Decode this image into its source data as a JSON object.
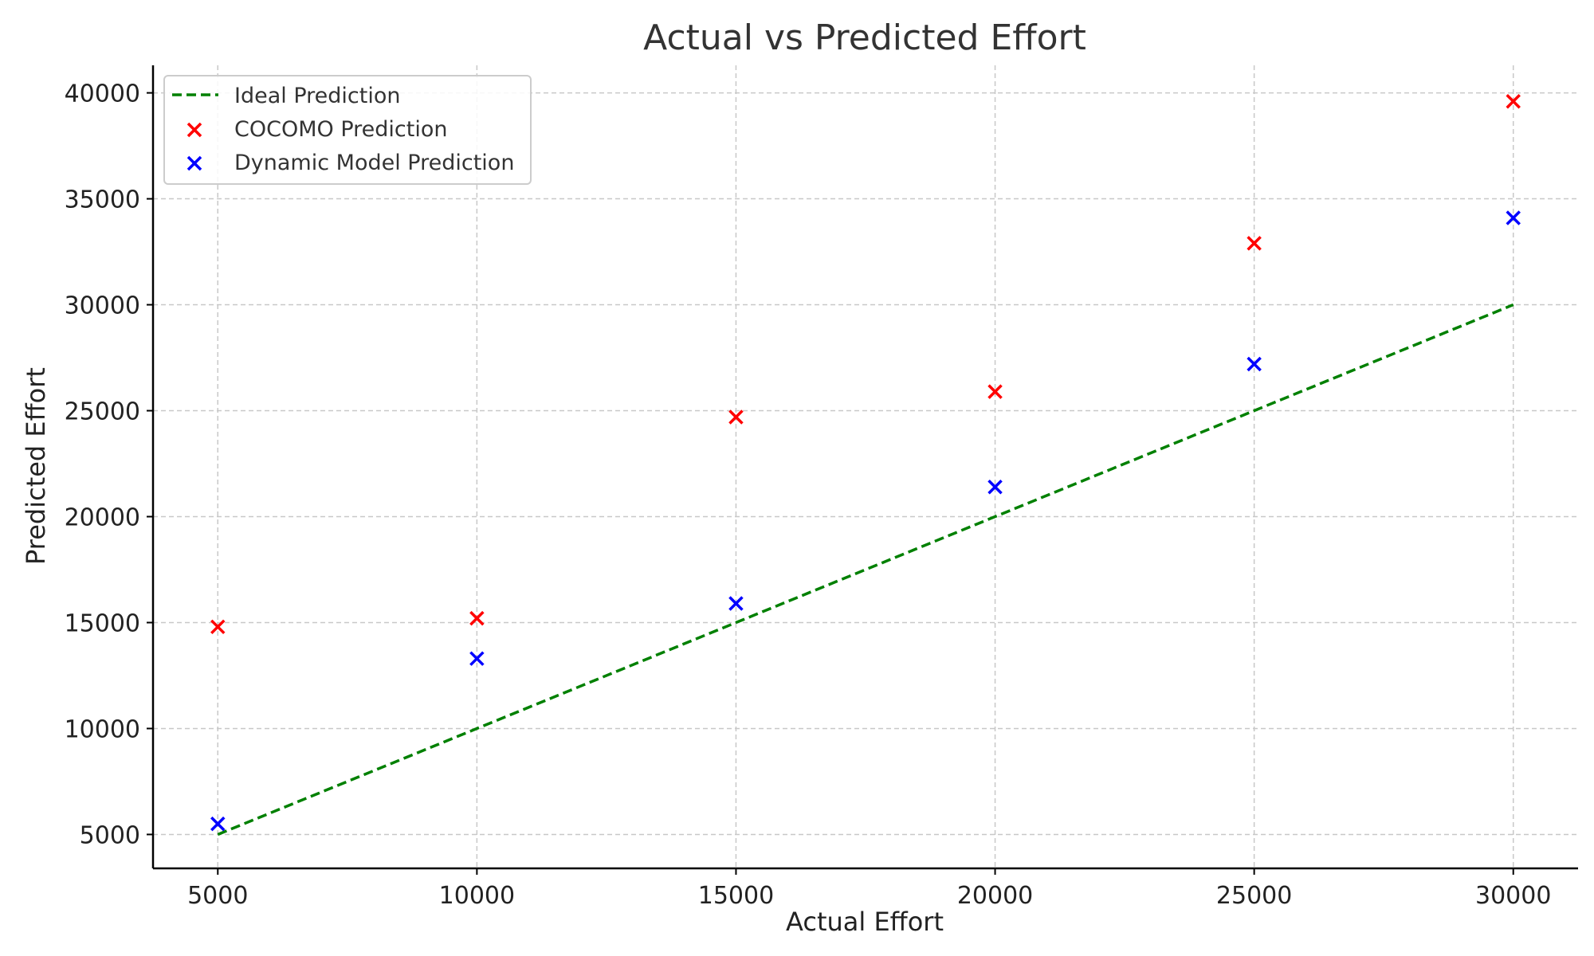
{
  "chart_data": {
    "type": "scatter",
    "title": "Actual vs Predicted Effort",
    "xlabel": "Actual Effort",
    "ylabel": "Predicted Effort",
    "x_ticks": [
      5000,
      10000,
      15000,
      20000,
      25000,
      30000
    ],
    "y_ticks": [
      5000,
      10000,
      15000,
      20000,
      25000,
      30000,
      35000,
      40000
    ],
    "xlim": [
      3750,
      31250
    ],
    "ylim": [
      3400,
      41300
    ],
    "grid": true,
    "legend_position": "top-left",
    "series": [
      {
        "name": "Ideal Prediction",
        "kind": "line",
        "style": "dashed",
        "color": "#008000",
        "x": [
          5000,
          30000
        ],
        "y": [
          5000,
          30000
        ]
      },
      {
        "name": "COCOMO Prediction",
        "kind": "scatter",
        "marker": "x",
        "color": "#ff0000",
        "x": [
          5000,
          10000,
          15000,
          20000,
          25000,
          30000
        ],
        "y": [
          14800,
          15200,
          24700,
          25900,
          32900,
          39600
        ]
      },
      {
        "name": "Dynamic Model Prediction",
        "kind": "scatter",
        "marker": "x",
        "color": "#0000ff",
        "x": [
          5000,
          10000,
          15000,
          20000,
          25000,
          30000
        ],
        "y": [
          5500,
          13300,
          15900,
          21400,
          27200,
          34100
        ]
      }
    ]
  }
}
